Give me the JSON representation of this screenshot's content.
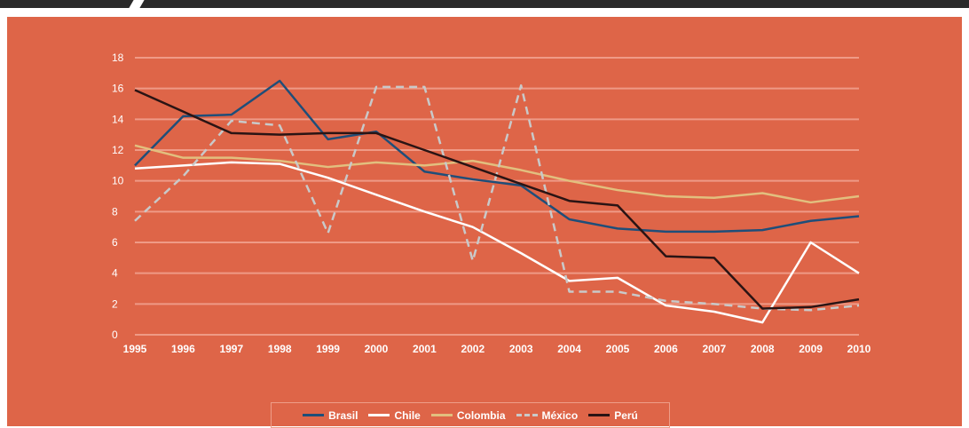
{
  "chart_data": {
    "type": "line",
    "x": [
      "1995",
      "1996",
      "1997",
      "1998",
      "1999",
      "2000",
      "2001",
      "2002",
      "2003",
      "2004",
      "2005",
      "2006",
      "2007",
      "2008",
      "2009",
      "2010"
    ],
    "ylim": [
      0,
      18
    ],
    "yticks": [
      0,
      2,
      4,
      6,
      8,
      10,
      12,
      14,
      16,
      18
    ],
    "grid": true,
    "legend_position": "bottom",
    "colors": {
      "background": "#de6548",
      "grid": "#ef9a86",
      "text": "#ffffff"
    },
    "series": [
      {
        "name": "Brasil",
        "color": "#1f4e79",
        "dash": false,
        "values": [
          11.0,
          14.2,
          14.3,
          16.5,
          12.7,
          13.2,
          10.6,
          10.1,
          9.7,
          7.5,
          6.9,
          6.7,
          6.7,
          6.8,
          7.4,
          7.7
        ]
      },
      {
        "name": "Chile",
        "color": "#ffffff",
        "dash": false,
        "values": [
          10.8,
          11.0,
          11.2,
          11.1,
          10.2,
          9.1,
          8.0,
          7.0,
          5.3,
          3.5,
          3.7,
          1.9,
          1.5,
          0.8,
          6.0,
          4.0
        ]
      },
      {
        "name": "Colombia",
        "color": "#e2bf7e",
        "dash": false,
        "values": [
          12.3,
          11.5,
          11.5,
          11.3,
          10.9,
          11.2,
          11.0,
          11.3,
          10.7,
          10.0,
          9.4,
          9.0,
          8.9,
          9.2,
          8.6,
          9.0
        ]
      },
      {
        "name": "México",
        "color": "#c9c9c9",
        "dash": true,
        "values": [
          7.4,
          10.3,
          13.9,
          13.6,
          6.6,
          16.1,
          16.1,
          4.8,
          16.2,
          2.8,
          2.8,
          2.2,
          2.0,
          1.7,
          1.6,
          1.9
        ]
      },
      {
        "name": "Perú",
        "color": "#2a1414",
        "dash": false,
        "values": [
          15.9,
          14.5,
          13.1,
          13.0,
          13.1,
          13.1,
          12.0,
          10.9,
          9.8,
          8.7,
          8.4,
          5.1,
          5.0,
          1.7,
          1.8,
          2.3
        ]
      }
    ]
  }
}
